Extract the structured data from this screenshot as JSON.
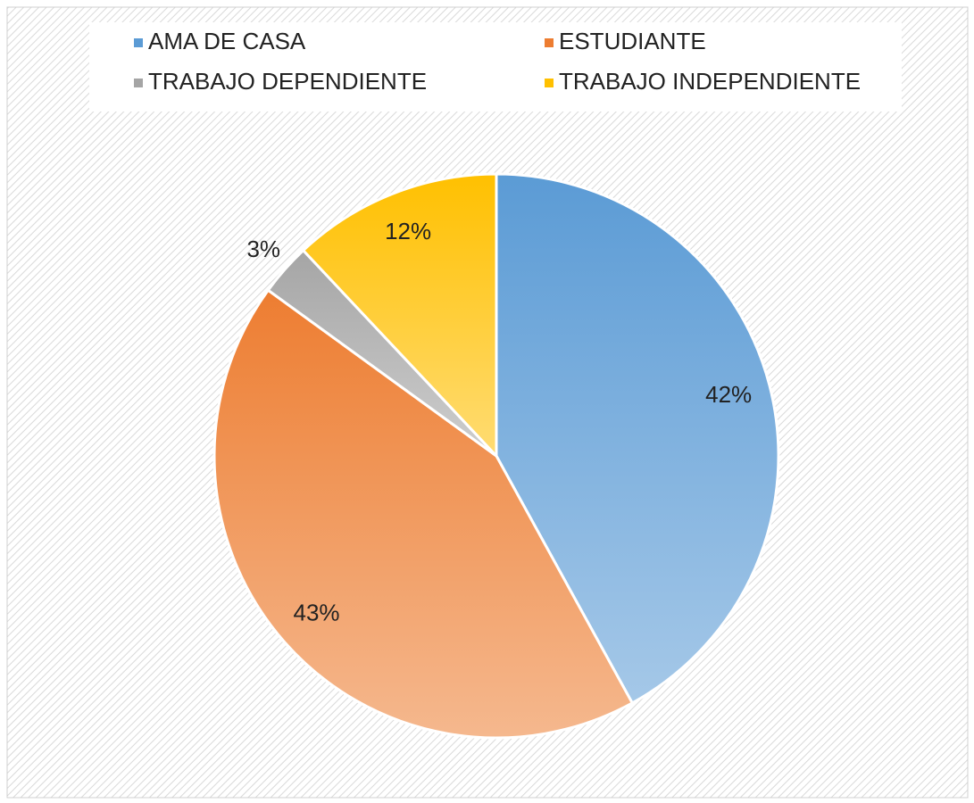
{
  "chart_data": {
    "type": "pie",
    "categories": [
      "AMA DE CASA",
      "ESTUDIANTE",
      "TRABAJO DEPENDIENTE",
      "TRABAJO INDEPENDIENTE"
    ],
    "values": [
      42,
      43,
      3,
      12
    ],
    "value_labels": [
      "42%",
      "43%",
      "3%",
      "12%"
    ],
    "colors": [
      "#5b9bd5",
      "#ed7d31",
      "#a5a5a5",
      "#ffc000"
    ],
    "legend": "top"
  }
}
